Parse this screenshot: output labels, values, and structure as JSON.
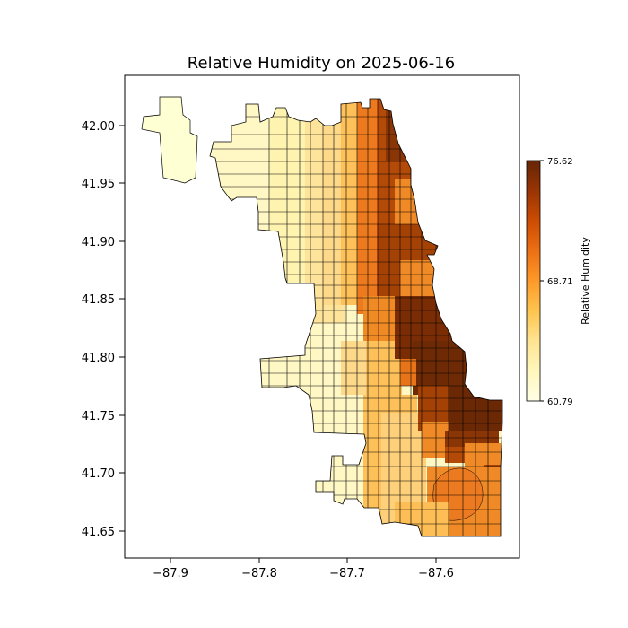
{
  "title": "Relative Humidity on 2025-06-16",
  "map": {
    "x_ticks": [
      "−87.9",
      "−87.8",
      "−87.7",
      "−87.6"
    ],
    "y_ticks": [
      "42.00",
      "41.95",
      "41.90",
      "41.85",
      "41.80",
      "41.75",
      "41.70",
      "41.65"
    ],
    "x_range": [
      -87.96,
      -87.51
    ],
    "y_range": [
      41.625,
      42.042
    ]
  },
  "colorbar": {
    "label": "Relative Humidity",
    "min": 60.79,
    "max": 76.62,
    "ticks": [
      "76.62",
      "68.71",
      "60.79"
    ],
    "colormap": "YlOrBr-like (light yellow to dark brown)",
    "colors": [
      "#ffffe5",
      "#fff7bc",
      "#fee391",
      "#fec44f",
      "#fe9929",
      "#ec7014",
      "#cc4c02",
      "#993404",
      "#662506"
    ]
  }
}
